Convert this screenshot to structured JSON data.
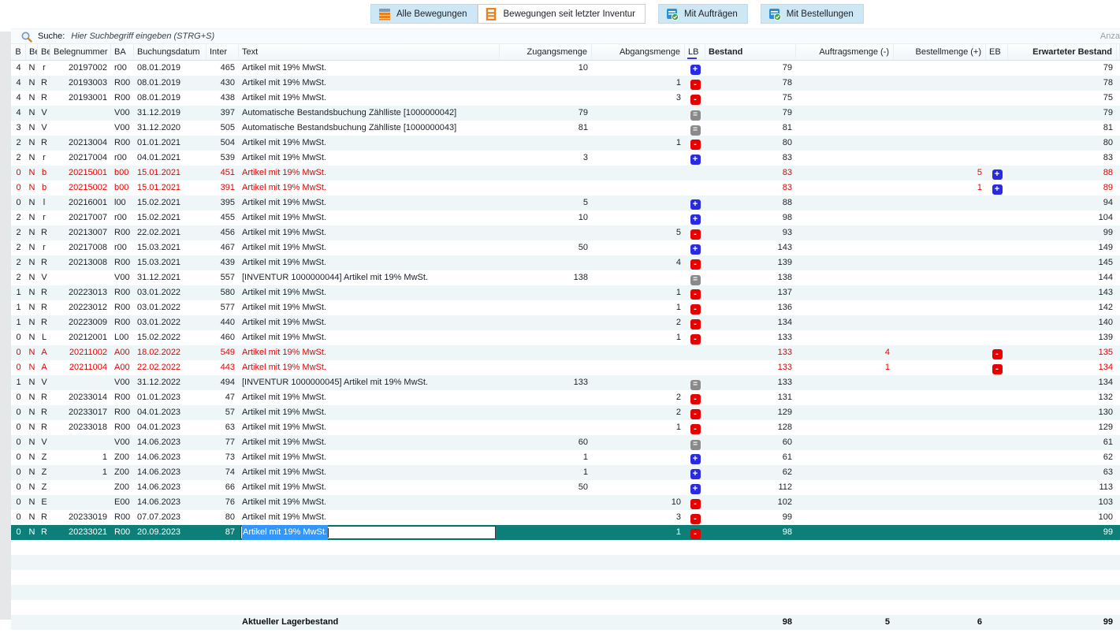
{
  "toolbar": {
    "buttons": [
      {
        "label": "Alle Bewegungen",
        "style": "blue",
        "icon": "movements-icon"
      },
      {
        "label": "Bewegungen seit letzter Inventur",
        "style": "white",
        "icon": "inventory-ladder-icon"
      },
      {
        "label": "Mit Aufträgen",
        "style": "blue",
        "icon": "orders-check-icon"
      },
      {
        "label": "Mit Bestellungen",
        "style": "blue",
        "icon": "purchase-check-icon"
      }
    ]
  },
  "search": {
    "label": "Suche:",
    "placeholder": "Hier Suchbegriff eingeben (STRG+S)",
    "right_text": "Anza"
  },
  "table": {
    "headers": [
      "B",
      "Be",
      "Be",
      "Belegnummer",
      "BA",
      "Buchungsdatum",
      "Inter",
      "Text",
      "Zugangsmenge",
      "Abgangsmenge",
      "LB",
      "Bestand",
      "Auftragsmenge (-)",
      "Bestellmenge (+)",
      "EB",
      "Erwarteter Bestand"
    ],
    "filler_row_count": 5,
    "rows": [
      {
        "b1": "4",
        "b2": "N",
        "b3": "r",
        "beleg": "20197002",
        "ba": "r00",
        "datum": "08.01.2019",
        "inter": "465",
        "text": "Artikel mit 19% MwSt.",
        "zugang": "10",
        "abgang": "",
        "lb": "plus",
        "bestand": "79",
        "auftrag": "",
        "bestell": "",
        "eb": "",
        "erw": "79",
        "variant": ""
      },
      {
        "b1": "4",
        "b2": "N",
        "b3": "R",
        "beleg": "20193003",
        "ba": "R00",
        "datum": "08.01.2019",
        "inter": "430",
        "text": "Artikel mit 19% MwSt.",
        "zugang": "",
        "abgang": "1",
        "lb": "minus",
        "bestand": "78",
        "auftrag": "",
        "bestell": "",
        "eb": "",
        "erw": "78",
        "variant": ""
      },
      {
        "b1": "4",
        "b2": "N",
        "b3": "R",
        "beleg": "20193001",
        "ba": "R00",
        "datum": "08.01.2019",
        "inter": "438",
        "text": "Artikel mit 19% MwSt.",
        "zugang": "",
        "abgang": "3",
        "lb": "minus",
        "bestand": "75",
        "auftrag": "",
        "bestell": "",
        "eb": "",
        "erw": "75",
        "variant": ""
      },
      {
        "b1": "4",
        "b2": "N",
        "b3": "V",
        "beleg": "",
        "ba": "V00",
        "datum": "31.12.2019",
        "inter": "397",
        "text": "Automatische Bestandsbuchung Zählliste [1000000042]",
        "zugang": "79",
        "abgang": "",
        "lb": "equal",
        "bestand": "79",
        "auftrag": "",
        "bestell": "",
        "eb": "",
        "erw": "79",
        "variant": ""
      },
      {
        "b1": "3",
        "b2": "N",
        "b3": "V",
        "beleg": "",
        "ba": "V00",
        "datum": "31.12.2020",
        "inter": "505",
        "text": "Automatische Bestandsbuchung Zählliste [1000000043]",
        "zugang": "81",
        "abgang": "",
        "lb": "equal",
        "bestand": "81",
        "auftrag": "",
        "bestell": "",
        "eb": "",
        "erw": "81",
        "variant": ""
      },
      {
        "b1": "2",
        "b2": "N",
        "b3": "R",
        "beleg": "20213004",
        "ba": "R00",
        "datum": "01.01.2021",
        "inter": "504",
        "text": "Artikel mit 19% MwSt.",
        "zugang": "",
        "abgang": "1",
        "lb": "minus",
        "bestand": "80",
        "auftrag": "",
        "bestell": "",
        "eb": "",
        "erw": "80",
        "variant": ""
      },
      {
        "b1": "2",
        "b2": "N",
        "b3": "r",
        "beleg": "20217004",
        "ba": "r00",
        "datum": "04.01.2021",
        "inter": "539",
        "text": "Artikel mit 19% MwSt.",
        "zugang": "3",
        "abgang": "",
        "lb": "plus",
        "bestand": "83",
        "auftrag": "",
        "bestell": "",
        "eb": "",
        "erw": "83",
        "variant": ""
      },
      {
        "b1": "0",
        "b2": "N",
        "b3": "b",
        "beleg": "20215001",
        "ba": "b00",
        "datum": "15.01.2021",
        "inter": "451",
        "text": "Artikel mit 19% MwSt.",
        "zugang": "",
        "abgang": "",
        "lb": "",
        "bestand": "83",
        "auftrag": "",
        "bestell": "5",
        "eb": "plus",
        "erw": "88",
        "variant": "red"
      },
      {
        "b1": "0",
        "b2": "N",
        "b3": "b",
        "beleg": "20215002",
        "ba": "b00",
        "datum": "15.01.2021",
        "inter": "391",
        "text": "Artikel mit 19% MwSt.",
        "zugang": "",
        "abgang": "",
        "lb": "",
        "bestand": "83",
        "auftrag": "",
        "bestell": "1",
        "eb": "plus",
        "erw": "89",
        "variant": "red"
      },
      {
        "b1": "0",
        "b2": "N",
        "b3": "l",
        "beleg": "20216001",
        "ba": "l00",
        "datum": "15.02.2021",
        "inter": "395",
        "text": "Artikel mit 19% MwSt.",
        "zugang": "5",
        "abgang": "",
        "lb": "plus",
        "bestand": "88",
        "auftrag": "",
        "bestell": "",
        "eb": "",
        "erw": "94",
        "variant": ""
      },
      {
        "b1": "2",
        "b2": "N",
        "b3": "r",
        "beleg": "20217007",
        "ba": "r00",
        "datum": "15.02.2021",
        "inter": "455",
        "text": "Artikel mit 19% MwSt.",
        "zugang": "10",
        "abgang": "",
        "lb": "plus",
        "bestand": "98",
        "auftrag": "",
        "bestell": "",
        "eb": "",
        "erw": "104",
        "variant": ""
      },
      {
        "b1": "2",
        "b2": "N",
        "b3": "R",
        "beleg": "20213007",
        "ba": "R00",
        "datum": "22.02.2021",
        "inter": "456",
        "text": "Artikel mit 19% MwSt.",
        "zugang": "",
        "abgang": "5",
        "lb": "minus",
        "bestand": "93",
        "auftrag": "",
        "bestell": "",
        "eb": "",
        "erw": "99",
        "variant": ""
      },
      {
        "b1": "2",
        "b2": "N",
        "b3": "r",
        "beleg": "20217008",
        "ba": "r00",
        "datum": "15.03.2021",
        "inter": "467",
        "text": "Artikel mit 19% MwSt.",
        "zugang": "50",
        "abgang": "",
        "lb": "plus",
        "bestand": "143",
        "auftrag": "",
        "bestell": "",
        "eb": "",
        "erw": "149",
        "variant": ""
      },
      {
        "b1": "2",
        "b2": "N",
        "b3": "R",
        "beleg": "20213008",
        "ba": "R00",
        "datum": "15.03.2021",
        "inter": "439",
        "text": "Artikel mit 19% MwSt.",
        "zugang": "",
        "abgang": "4",
        "lb": "minus",
        "bestand": "139",
        "auftrag": "",
        "bestell": "",
        "eb": "",
        "erw": "145",
        "variant": ""
      },
      {
        "b1": "2",
        "b2": "N",
        "b3": "V",
        "beleg": "",
        "ba": "V00",
        "datum": "31.12.2021",
        "inter": "557",
        "text": "[INVENTUR 1000000044] Artikel mit 19% MwSt.",
        "zugang": "138",
        "abgang": "",
        "lb": "equal",
        "bestand": "138",
        "auftrag": "",
        "bestell": "",
        "eb": "",
        "erw": "144",
        "variant": ""
      },
      {
        "b1": "1",
        "b2": "N",
        "b3": "R",
        "beleg": "20223013",
        "ba": "R00",
        "datum": "03.01.2022",
        "inter": "580",
        "text": "Artikel mit 19% MwSt.",
        "zugang": "",
        "abgang": "1",
        "lb": "minus",
        "bestand": "137",
        "auftrag": "",
        "bestell": "",
        "eb": "",
        "erw": "143",
        "variant": ""
      },
      {
        "b1": "1",
        "b2": "N",
        "b3": "R",
        "beleg": "20223012",
        "ba": "R00",
        "datum": "03.01.2022",
        "inter": "577",
        "text": "Artikel mit 19% MwSt.",
        "zugang": "",
        "abgang": "1",
        "lb": "minus",
        "bestand": "136",
        "auftrag": "",
        "bestell": "",
        "eb": "",
        "erw": "142",
        "variant": ""
      },
      {
        "b1": "1",
        "b2": "N",
        "b3": "R",
        "beleg": "20223009",
        "ba": "R00",
        "datum": "03.01.2022",
        "inter": "440",
        "text": "Artikel mit 19% MwSt.",
        "zugang": "",
        "abgang": "2",
        "lb": "minus",
        "bestand": "134",
        "auftrag": "",
        "bestell": "",
        "eb": "",
        "erw": "140",
        "variant": ""
      },
      {
        "b1": "0",
        "b2": "N",
        "b3": "L",
        "beleg": "20212001",
        "ba": "L00",
        "datum": "15.02.2022",
        "inter": "460",
        "text": "Artikel mit 19% MwSt.",
        "zugang": "",
        "abgang": "1",
        "lb": "minus",
        "bestand": "133",
        "auftrag": "",
        "bestell": "",
        "eb": "",
        "erw": "139",
        "variant": ""
      },
      {
        "b1": "0",
        "b2": "N",
        "b3": "A",
        "beleg": "20211002",
        "ba": "A00",
        "datum": "18.02.2022",
        "inter": "549",
        "text": "Artikel mit 19% MwSt.",
        "zugang": "",
        "abgang": "",
        "lb": "",
        "bestand": "133",
        "auftrag": "4",
        "bestell": "",
        "eb": "minus",
        "erw": "135",
        "variant": "red"
      },
      {
        "b1": "0",
        "b2": "N",
        "b3": "A",
        "beleg": "20211004",
        "ba": "A00",
        "datum": "22.02.2022",
        "inter": "443",
        "text": "Artikel mit 19% MwSt.",
        "zugang": "",
        "abgang": "",
        "lb": "",
        "bestand": "133",
        "auftrag": "1",
        "bestell": "",
        "eb": "minus",
        "erw": "134",
        "variant": "red"
      },
      {
        "b1": "1",
        "b2": "N",
        "b3": "V",
        "beleg": "",
        "ba": "V00",
        "datum": "31.12.2022",
        "inter": "494",
        "text": "[INVENTUR 1000000045] Artikel mit 19% MwSt.",
        "zugang": "133",
        "abgang": "",
        "lb": "equal",
        "bestand": "133",
        "auftrag": "",
        "bestell": "",
        "eb": "",
        "erw": "134",
        "variant": ""
      },
      {
        "b1": "0",
        "b2": "N",
        "b3": "R",
        "beleg": "20233014",
        "ba": "R00",
        "datum": "01.01.2023",
        "inter": "47",
        "text": "Artikel mit 19% MwSt.",
        "zugang": "",
        "abgang": "2",
        "lb": "minus",
        "bestand": "131",
        "auftrag": "",
        "bestell": "",
        "eb": "",
        "erw": "132",
        "variant": ""
      },
      {
        "b1": "0",
        "b2": "N",
        "b3": "R",
        "beleg": "20233017",
        "ba": "R00",
        "datum": "04.01.2023",
        "inter": "57",
        "text": "Artikel mit 19% MwSt.",
        "zugang": "",
        "abgang": "2",
        "lb": "minus",
        "bestand": "129",
        "auftrag": "",
        "bestell": "",
        "eb": "",
        "erw": "130",
        "variant": ""
      },
      {
        "b1": "0",
        "b2": "N",
        "b3": "R",
        "beleg": "20233018",
        "ba": "R00",
        "datum": "04.01.2023",
        "inter": "63",
        "text": "Artikel mit 19% MwSt.",
        "zugang": "",
        "abgang": "1",
        "lb": "minus",
        "bestand": "128",
        "auftrag": "",
        "bestell": "",
        "eb": "",
        "erw": "129",
        "variant": ""
      },
      {
        "b1": "0",
        "b2": "N",
        "b3": "V",
        "beleg": "",
        "ba": "V00",
        "datum": "14.06.2023",
        "inter": "77",
        "text": "Artikel mit 19% MwSt.",
        "zugang": "60",
        "abgang": "",
        "lb": "equal",
        "bestand": "60",
        "auftrag": "",
        "bestell": "",
        "eb": "",
        "erw": "61",
        "variant": ""
      },
      {
        "b1": "0",
        "b2": "N",
        "b3": "Z",
        "beleg": "1",
        "ba": "Z00",
        "datum": "14.06.2023",
        "inter": "73",
        "text": "Artikel mit 19% MwSt.",
        "zugang": "1",
        "abgang": "",
        "lb": "plus",
        "bestand": "61",
        "auftrag": "",
        "bestell": "",
        "eb": "",
        "erw": "62",
        "variant": ""
      },
      {
        "b1": "0",
        "b2": "N",
        "b3": "Z",
        "beleg": "1",
        "ba": "Z00",
        "datum": "14.06.2023",
        "inter": "74",
        "text": "Artikel mit 19% MwSt.",
        "zugang": "1",
        "abgang": "",
        "lb": "plus",
        "bestand": "62",
        "auftrag": "",
        "bestell": "",
        "eb": "",
        "erw": "63",
        "variant": ""
      },
      {
        "b1": "0",
        "b2": "N",
        "b3": "Z",
        "beleg": "",
        "ba": "Z00",
        "datum": "14.06.2023",
        "inter": "66",
        "text": "Artikel mit 19% MwSt.",
        "zugang": "50",
        "abgang": "",
        "lb": "plus",
        "bestand": "112",
        "auftrag": "",
        "bestell": "",
        "eb": "",
        "erw": "113",
        "variant": ""
      },
      {
        "b1": "0",
        "b2": "N",
        "b3": "E",
        "beleg": "",
        "ba": "E00",
        "datum": "14.06.2023",
        "inter": "76",
        "text": "Artikel mit 19% MwSt.",
        "zugang": "",
        "abgang": "10",
        "lb": "minus",
        "bestand": "102",
        "auftrag": "",
        "bestell": "",
        "eb": "",
        "erw": "103",
        "variant": ""
      },
      {
        "b1": "0",
        "b2": "N",
        "b3": "R",
        "beleg": "20233019",
        "ba": "R00",
        "datum": "07.07.2023",
        "inter": "80",
        "text": "Artikel mit 19% MwSt.",
        "zugang": "",
        "abgang": "3",
        "lb": "minus",
        "bestand": "99",
        "auftrag": "",
        "bestell": "",
        "eb": "",
        "erw": "100",
        "variant": ""
      },
      {
        "b1": "0",
        "b2": "N",
        "b3": "R",
        "beleg": "20233021",
        "ba": "R00",
        "datum": "20.09.2023",
        "inter": "87",
        "text": "Artikel mit 19% MwSt.",
        "zugang": "",
        "abgang": "1",
        "lb": "minus",
        "bestand": "98",
        "auftrag": "",
        "bestell": "",
        "eb": "",
        "erw": "99",
        "variant": "selected"
      }
    ],
    "summary": {
      "label": "Aktueller Lagerbestand",
      "bestand": "98",
      "auftragsmenge": "5",
      "bestellmenge": "6",
      "erwarteter_bestand": "99"
    }
  },
  "colors": {
    "selected_row_bg": "#0d7f78",
    "red_text": "#e60000",
    "chip_plus_blue": "#2a2ae0",
    "chip_minus_red": "#e60000",
    "chip_equal_gray": "#8a8a8a",
    "row_alt_bg": "#eff6f8",
    "button_blue_bg": "#cde7f5",
    "selection_highlight": "#3296fb"
  }
}
